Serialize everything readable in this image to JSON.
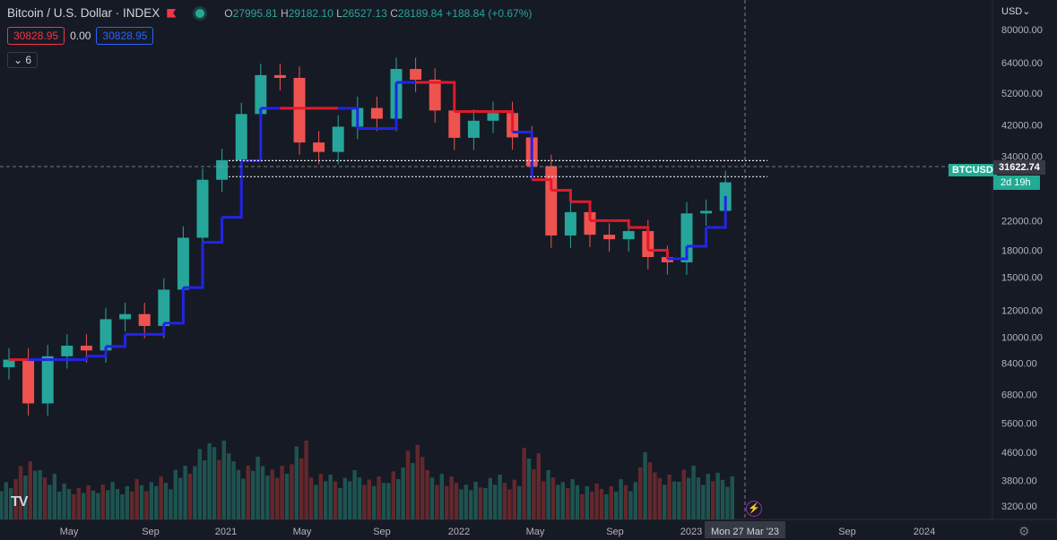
{
  "header": {
    "symbol": "Bitcoin / U.S. Dollar · INDEX",
    "open_label": "O",
    "open": "27995.81",
    "high_label": "H",
    "high": "29182.10",
    "low_label": "L",
    "low": "26527.13",
    "close_label": "C",
    "close": "28189.84",
    "change": "+188.84 (+0.67%)"
  },
  "indicator": {
    "upper": "30828.95",
    "mid": "0.00",
    "lower": "30828.95",
    "collapse_label": "6"
  },
  "price_axis": {
    "currency": "USD",
    "ticks": [
      "80000.00",
      "64000.00",
      "52000.00",
      "42000.00",
      "34000.00",
      "22000.00",
      "18000.00",
      "15000.00",
      "12000.00",
      "10000.00",
      "8400.00",
      "6800.00",
      "5600.00",
      "4600.00",
      "3800.00",
      "3200.00"
    ],
    "symbol_tag": "BTCUSD",
    "last_price": "31622.74",
    "countdown": "2d 19h"
  },
  "time_axis": {
    "ticks": [
      "May",
      "Sep",
      "2021",
      "May",
      "Sep",
      "2022",
      "May",
      "Sep",
      "2023",
      "Sep",
      "2024"
    ],
    "crosshair_label": "Mon 27 Mar '23"
  },
  "colors": {
    "up": "#26a69a",
    "down": "#ef5350",
    "st_up": "#2323e6",
    "st_down": "#e01a2a",
    "bg": "#161a25"
  },
  "chart_data": {
    "type": "candlestick",
    "scale": "log",
    "ylim": [
      2900,
      98000
    ],
    "series": [
      {
        "name": "BTCUSD",
        "x": [
          "2020-02",
          "2020-03",
          "2020-04",
          "2020-05",
          "2020-06",
          "2020-07",
          "2020-08",
          "2020-09",
          "2020-10",
          "2020-11",
          "2020-12",
          "2021-01",
          "2021-02",
          "2021-03",
          "2021-04",
          "2021-05",
          "2021-06",
          "2021-07",
          "2021-08",
          "2021-09",
          "2021-10",
          "2021-11",
          "2021-12",
          "2022-01",
          "2022-02",
          "2022-03",
          "2022-04",
          "2022-05",
          "2022-06",
          "2022-07",
          "2022-08",
          "2022-09",
          "2022-10",
          "2022-11",
          "2022-12",
          "2023-01",
          "2023-02",
          "2023-03"
        ],
        "close": [
          8600,
          6400,
          8800,
          9450,
          9150,
          11300,
          11700,
          10800,
          13800,
          19600,
          29000,
          33100,
          45200,
          58800,
          57700,
          37300,
          35000,
          41500,
          47100,
          43800,
          61300,
          57000,
          46300,
          38500,
          43200,
          45500,
          38600,
          31800,
          19900,
          23300,
          20000,
          19400,
          20500,
          17200,
          16600,
          23100,
          23500,
          28500
        ]
      },
      {
        "name": "supertrend",
        "values": [
          8600,
          8600,
          8600,
          8600,
          8800,
          9400,
          10200,
          10200,
          11000,
          14000,
          19000,
          22500,
          33000,
          47000,
          47000,
          47000,
          47000,
          47000,
          41000,
          41000,
          56000,
          56000,
          56000,
          46000,
          46000,
          46000,
          40000,
          29000,
          27000,
          25000,
          22000,
          22000,
          21000,
          18000,
          17000,
          18500,
          21000,
          26000
        ]
      }
    ],
    "volume": [
      45,
      70,
      55,
      40,
      38,
      42,
      40,
      45,
      48,
      60,
      85,
      95,
      65,
      70,
      60,
      88,
      55,
      50,
      55,
      48,
      58,
      90,
      55,
      48,
      42,
      50,
      48,
      80,
      55,
      45,
      40,
      40,
      45,
      75,
      50,
      60,
      55,
      52
    ],
    "levels": [
      33000,
      29600
    ]
  }
}
